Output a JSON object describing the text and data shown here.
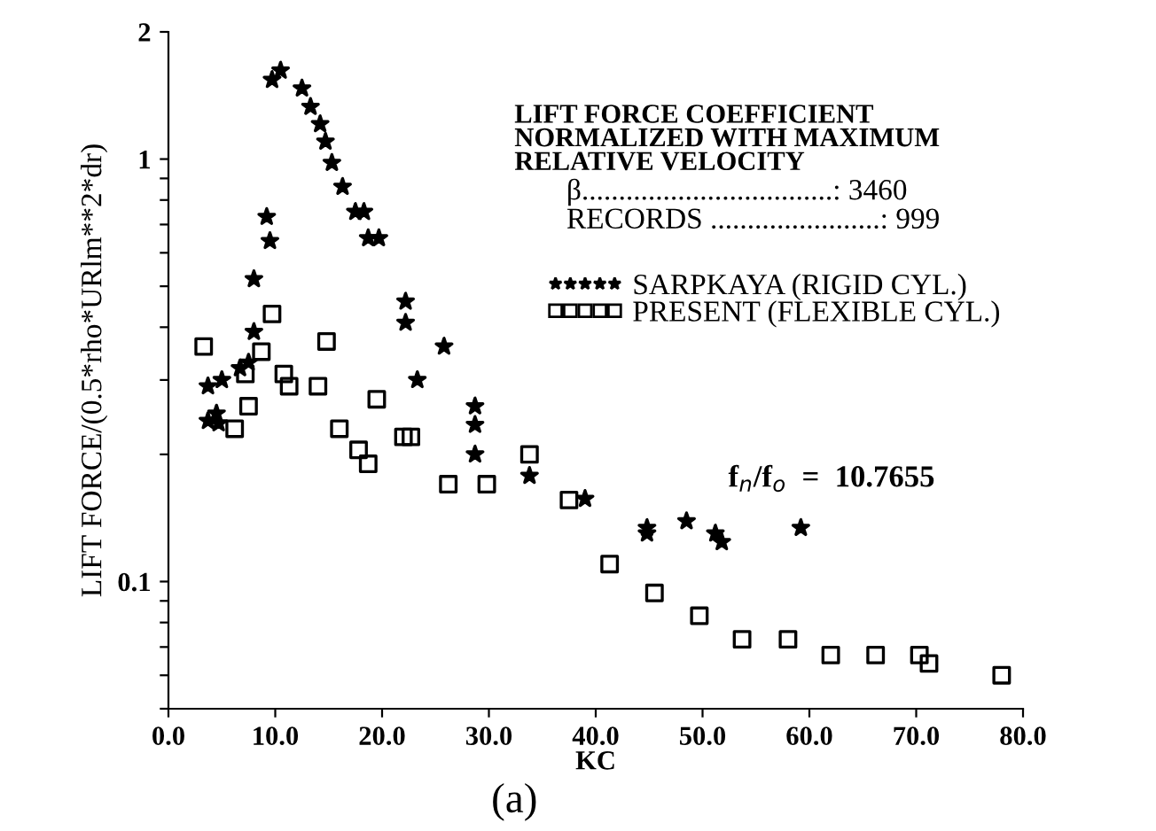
{
  "chart_data": {
    "type": "scatter",
    "xlabel": "KC",
    "ylabel": "LIFT FORCE/(0.5*rho*URlm**2*dr)",
    "log": "y",
    "grid": false,
    "legend": "right",
    "xlim": [
      0,
      80
    ],
    "ylim": [
      0.05,
      2
    ],
    "xticks": [
      {
        "value": 0,
        "label": "0.0"
      },
      {
        "value": 10,
        "label": "10.0"
      },
      {
        "value": 20,
        "label": "20.0"
      },
      {
        "value": 30,
        "label": "30.0"
      },
      {
        "value": 40,
        "label": "40.0"
      },
      {
        "value": 50,
        "label": "50.0"
      },
      {
        "value": 60,
        "label": "60.0"
      },
      {
        "value": 70,
        "label": "70.0"
      },
      {
        "value": 80,
        "label": "80.0"
      }
    ],
    "yticks": [
      {
        "value": 0.05,
        "label": null
      },
      {
        "value": 0.06,
        "label": null
      },
      {
        "value": 0.07,
        "label": null
      },
      {
        "value": 0.08,
        "label": null
      },
      {
        "value": 0.09,
        "label": null
      },
      0.1,
      {
        "value": 0.2,
        "label": null
      },
      {
        "value": 0.3,
        "label": null
      },
      {
        "value": 0.4,
        "label": null
      },
      {
        "value": 0.5,
        "label": null
      },
      {
        "value": 0.6,
        "label": null
      },
      {
        "value": 0.7,
        "label": null
      },
      {
        "value": 0.8,
        "label": null
      },
      {
        "value": 0.9,
        "label": null
      },
      1,
      2
    ],
    "annotations": [
      "LIFT FORCE COEFFICIENT\nNORMALIZED WITH MAXIMUM\nRELATIVE VELOCITY",
      "β..................................: 3460",
      "RECORDS .......................: 999",
      "f$_{n}$/f$_{o}$  =  10.7655",
      "(a)"
    ],
    "series": [
      {
        "name": "SARPKAYA (RIGID CYL.)",
        "color": "#000000",
        "marker": "star",
        "x": [
          9.7,
          10.5,
          12.5,
          13.3,
          14.2,
          14.7,
          15.3,
          16.3,
          17.5,
          18.3,
          19.7,
          18.7,
          9.2,
          9.5,
          8.0,
          22.2,
          22.2,
          25.8,
          23.3,
          8.0,
          7.5,
          3.7,
          5.0,
          6.7,
          3.7,
          4.7,
          4.5,
          28.7,
          28.7,
          28.7,
          33.8,
          39.0,
          44.8,
          44.8,
          48.5,
          51.2,
          51.8,
          59.2
        ],
        "values": [
          1.54,
          1.62,
          1.47,
          1.33,
          1.21,
          1.1,
          0.98,
          0.86,
          0.75,
          0.75,
          0.65,
          0.65,
          0.73,
          0.64,
          0.52,
          0.46,
          0.41,
          0.36,
          0.3,
          0.39,
          0.33,
          0.29,
          0.3,
          0.32,
          0.24,
          0.237,
          0.25,
          0.26,
          0.235,
          0.2,
          0.178,
          0.157,
          0.134,
          0.13,
          0.139,
          0.13,
          0.124,
          0.134
        ]
      },
      {
        "name": "PRESENT (FLEXIBLE CYL.)",
        "color": "#000000",
        "marker": "square",
        "x": [
          3.3,
          9.7,
          14.8,
          8.7,
          7.2,
          10.8,
          11.3,
          14.0,
          19.5,
          7.5,
          6.2,
          16.0,
          17.8,
          18.7,
          22.0,
          22.7,
          26.2,
          29.8,
          33.8,
          37.5,
          41.3,
          45.5,
          49.7,
          53.7,
          58.0,
          62.0,
          66.2,
          70.3,
          71.2,
          78.0
        ],
        "values": [
          0.36,
          0.43,
          0.37,
          0.35,
          0.31,
          0.31,
          0.29,
          0.29,
          0.27,
          0.26,
          0.23,
          0.23,
          0.205,
          0.19,
          0.22,
          0.22,
          0.17,
          0.17,
          0.2,
          0.156,
          0.11,
          0.094,
          0.083,
          0.073,
          0.073,
          0.067,
          0.067,
          0.067,
          0.064,
          0.06
        ]
      }
    ]
  }
}
